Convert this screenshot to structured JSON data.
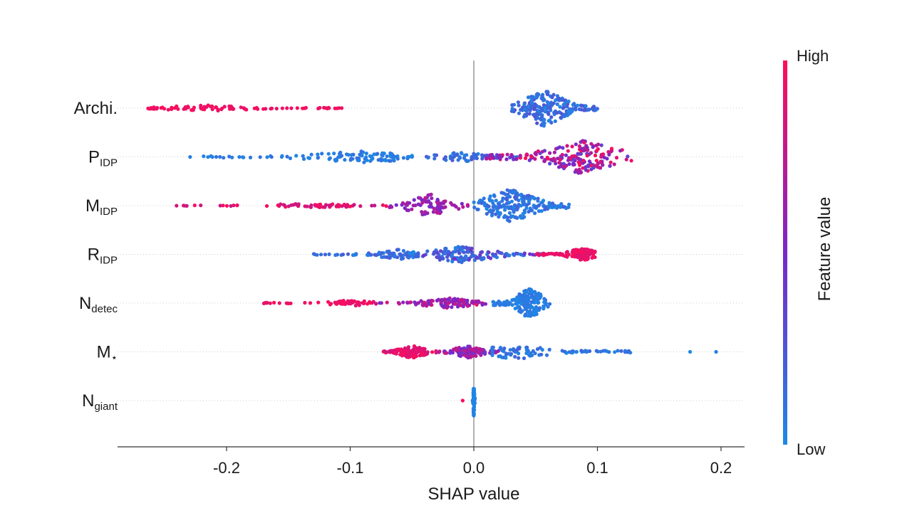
{
  "chart_data": {
    "type": "scatter",
    "subtype": "shap-beeswarm",
    "xlabel": "SHAP value",
    "xlim": [
      -0.28,
      0.22
    ],
    "xticks": [
      "-0.2",
      "-0.1",
      "0.0",
      "0.1",
      "0.2"
    ],
    "xtick_values": [
      -0.2,
      -0.1,
      0.0,
      0.1,
      0.2
    ],
    "colorbar": {
      "label": "Feature value",
      "high": "High",
      "low": "Low",
      "high_color": "#ff0d57",
      "mid_color": "#7b26c8",
      "low_color": "#1e88e5"
    },
    "features": [
      {
        "label": "Archi.",
        "sub": "",
        "clusters": [
          {
            "from": -0.265,
            "to": -0.105,
            "center": -0.215,
            "n": 90,
            "vmin": 0.9,
            "vmax": 1.0,
            "spread": 4
          },
          {
            "from": 0.03,
            "to": 0.1,
            "center": 0.057,
            "n": 210,
            "vmin": 0.0,
            "vmax": 0.28,
            "spread": 26
          }
        ]
      },
      {
        "label": "P",
        "sub": "IDP",
        "clusters": [
          {
            "from": -0.23,
            "to": -0.05,
            "center": -0.09,
            "n": 110,
            "vmin": 0.0,
            "vmax": 0.12,
            "spread": 8
          },
          {
            "from": -0.05,
            "to": 0.04,
            "center": -0.01,
            "n": 60,
            "vmin": 0.0,
            "vmax": 0.3,
            "spread": 7
          },
          {
            "from": 0.01,
            "to": 0.13,
            "center": 0.088,
            "n": 200,
            "vmin": 0.35,
            "vmax": 1.0,
            "spread": 24
          }
        ]
      },
      {
        "label": "M",
        "sub": "IDP",
        "clusters": [
          {
            "from": -0.245,
            "to": -0.07,
            "center": -0.13,
            "n": 70,
            "vmin": 0.75,
            "vmax": 1.0,
            "spread": 3
          },
          {
            "from": -0.07,
            "to": 0.0,
            "center": -0.035,
            "n": 80,
            "vmin": 0.45,
            "vmax": 0.75,
            "spread": 16
          },
          {
            "from": 0.0,
            "to": 0.083,
            "center": 0.03,
            "n": 200,
            "vmin": 0.0,
            "vmax": 0.2,
            "spread": 24
          }
        ]
      },
      {
        "label": "R",
        "sub": "IDP",
        "clusters": [
          {
            "from": -0.13,
            "to": -0.045,
            "center": -0.06,
            "n": 90,
            "vmin": 0.0,
            "vmax": 0.25,
            "spread": 7
          },
          {
            "from": -0.045,
            "to": 0.06,
            "center": -0.01,
            "n": 150,
            "vmin": 0.0,
            "vmax": 0.45,
            "spread": 12
          },
          {
            "from": 0.05,
            "to": 0.098,
            "center": 0.088,
            "n": 120,
            "vmin": 0.85,
            "vmax": 1.0,
            "spread": 9
          }
        ]
      },
      {
        "label": "N",
        "sub": "detec",
        "clusters": [
          {
            "from": -0.17,
            "to": -0.08,
            "center": -0.1,
            "n": 60,
            "vmin": 0.88,
            "vmax": 1.0,
            "spread": 4
          },
          {
            "from": -0.08,
            "to": 0.01,
            "center": -0.02,
            "n": 110,
            "vmin": 0.45,
            "vmax": 0.85,
            "spread": 7
          },
          {
            "from": 0.015,
            "to": 0.062,
            "center": 0.045,
            "n": 180,
            "vmin": 0.0,
            "vmax": 0.12,
            "spread": 22
          }
        ]
      },
      {
        "label": "M",
        "sub": "⋆",
        "clusters": [
          {
            "from": -0.075,
            "to": -0.03,
            "center": -0.05,
            "n": 120,
            "vmin": 0.82,
            "vmax": 1.0,
            "spread": 9
          },
          {
            "from": -0.03,
            "to": 0.02,
            "center": -0.005,
            "n": 110,
            "vmin": 0.4,
            "vmax": 0.8,
            "spread": 9
          },
          {
            "from": 0.015,
            "to": 0.13,
            "center": 0.03,
            "n": 100,
            "vmin": 0.0,
            "vmax": 0.2,
            "spread": 12
          },
          {
            "from": 0.175,
            "to": 0.196,
            "center": 0.185,
            "n": 2,
            "vmin": 0.0,
            "vmax": 0.05,
            "spread": 0
          }
        ]
      },
      {
        "label": "N",
        "sub": "giant",
        "clusters": [
          {
            "from": -0.01,
            "to": -0.008,
            "center": -0.009,
            "n": 1,
            "vmin": 1.0,
            "vmax": 1.0,
            "spread": 0
          },
          {
            "from": -0.001,
            "to": 0.001,
            "center": 0.0,
            "n": 60,
            "vmin": 0.0,
            "vmax": 0.05,
            "spread": 26
          }
        ]
      }
    ]
  }
}
